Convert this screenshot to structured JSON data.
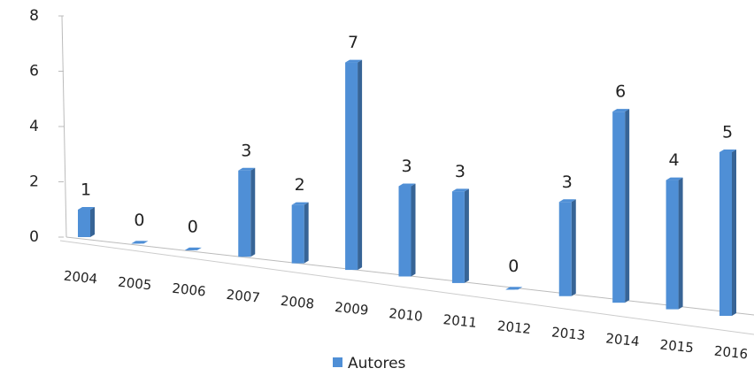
{
  "chart_data": {
    "type": "bar3d",
    "categories": [
      "2004",
      "2005",
      "2006",
      "2007",
      "2008",
      "2009",
      "2010",
      "2011",
      "2012",
      "2013",
      "2014",
      "2015",
      "2016"
    ],
    "series": [
      {
        "name": "Autores",
        "color": "#4f8fd6",
        "values": [
          1,
          0,
          0,
          3,
          2,
          7,
          3,
          3,
          0,
          3,
          6,
          4,
          5
        ]
      }
    ],
    "ylim": [
      0,
      8
    ],
    "yticks": [
      0,
      2,
      4,
      6,
      8
    ],
    "legend": "bottom"
  }
}
